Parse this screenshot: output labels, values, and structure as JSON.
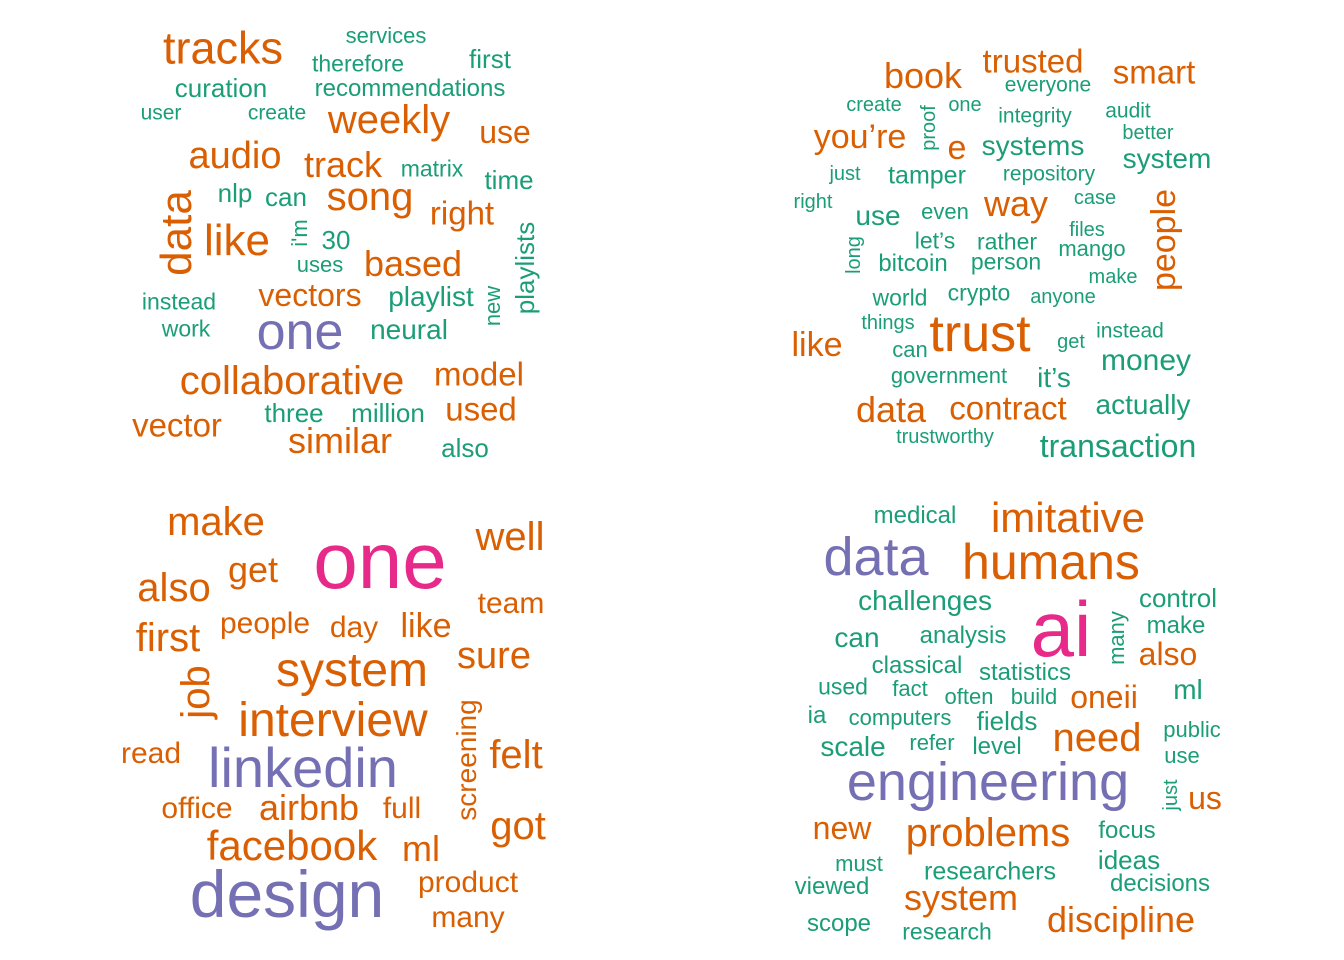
{
  "colors": {
    "orange": "#d95f02",
    "green": "#1b9e77",
    "purple": "#7570b3",
    "pink": "#e7298a"
  },
  "clouds": [
    {
      "words": [
        {
          "text": "tracks",
          "c": "orange",
          "w": 45
        },
        {
          "text": "services",
          "c": "green",
          "w": 22
        },
        {
          "text": "therefore",
          "c": "green",
          "w": 23
        },
        {
          "text": "first",
          "c": "green",
          "w": 26
        },
        {
          "text": "curation",
          "c": "green",
          "w": 26
        },
        {
          "text": "recommendations",
          "c": "green",
          "w": 24
        },
        {
          "text": "user",
          "c": "green",
          "w": 21
        },
        {
          "text": "create",
          "c": "green",
          "w": 21
        },
        {
          "text": "weekly",
          "c": "orange",
          "w": 40
        },
        {
          "text": "use",
          "c": "orange",
          "w": 32
        },
        {
          "text": "audio",
          "c": "orange",
          "w": 38
        },
        {
          "text": "track",
          "c": "orange",
          "w": 36
        },
        {
          "text": "matrix",
          "c": "green",
          "w": 23
        },
        {
          "text": "time",
          "c": "green",
          "w": 26
        },
        {
          "text": "data",
          "c": "orange",
          "w": 44,
          "v": true
        },
        {
          "text": "nlp",
          "c": "green",
          "w": 26
        },
        {
          "text": "can",
          "c": "green",
          "w": 26
        },
        {
          "text": "song",
          "c": "orange",
          "w": 40
        },
        {
          "text": "right",
          "c": "orange",
          "w": 33
        },
        {
          "text": "like",
          "c": "orange",
          "w": 44
        },
        {
          "text": "i'm",
          "c": "green",
          "w": 22,
          "v": true
        },
        {
          "text": "30",
          "c": "green",
          "w": 26
        },
        {
          "text": "uses",
          "c": "green",
          "w": 22
        },
        {
          "text": "based",
          "c": "orange",
          "w": 36
        },
        {
          "text": "playlists",
          "c": "green",
          "w": 26,
          "v": true
        },
        {
          "text": "new",
          "c": "green",
          "w": 22,
          "v": true
        },
        {
          "text": "instead",
          "c": "green",
          "w": 23
        },
        {
          "text": "vectors",
          "c": "orange",
          "w": 32
        },
        {
          "text": "playlist",
          "c": "green",
          "w": 28
        },
        {
          "text": "work",
          "c": "green",
          "w": 23
        },
        {
          "text": "one",
          "c": "purple",
          "w": 52
        },
        {
          "text": "neural",
          "c": "green",
          "w": 28
        },
        {
          "text": "collaborative",
          "c": "orange",
          "w": 40
        },
        {
          "text": "model",
          "c": "orange",
          "w": 33
        },
        {
          "text": "vector",
          "c": "orange",
          "w": 33
        },
        {
          "text": "three",
          "c": "green",
          "w": 26
        },
        {
          "text": "million",
          "c": "green",
          "w": 26
        },
        {
          "text": "used",
          "c": "orange",
          "w": 33
        },
        {
          "text": "similar",
          "c": "orange",
          "w": 36
        },
        {
          "text": "also",
          "c": "green",
          "w": 26
        }
      ]
    },
    {
      "words": [
        {
          "text": "book",
          "c": "orange",
          "w": 36
        },
        {
          "text": "trusted",
          "c": "orange",
          "w": 33
        },
        {
          "text": "smart",
          "c": "orange",
          "w": 33
        },
        {
          "text": "everyone",
          "c": "green",
          "w": 21
        },
        {
          "text": "create",
          "c": "green",
          "w": 20
        },
        {
          "text": "proof",
          "c": "green",
          "w": 20,
          "v": true
        },
        {
          "text": "one",
          "c": "green",
          "w": 20
        },
        {
          "text": "integrity",
          "c": "green",
          "w": 21
        },
        {
          "text": "audit",
          "c": "green",
          "w": 21
        },
        {
          "text": "you’re",
          "c": "orange",
          "w": 34
        },
        {
          "text": "better",
          "c": "green",
          "w": 20
        },
        {
          "text": "e",
          "c": "orange",
          "w": 34
        },
        {
          "text": "systems",
          "c": "green",
          "w": 28
        },
        {
          "text": "system",
          "c": "green",
          "w": 28
        },
        {
          "text": "just",
          "c": "green",
          "w": 20
        },
        {
          "text": "tamper",
          "c": "green",
          "w": 25
        },
        {
          "text": "repository",
          "c": "green",
          "w": 21
        },
        {
          "text": "case",
          "c": "green",
          "w": 20
        },
        {
          "text": "right",
          "c": "green",
          "w": 20
        },
        {
          "text": "way",
          "c": "orange",
          "w": 36
        },
        {
          "text": "people",
          "c": "orange",
          "w": 34,
          "v": true
        },
        {
          "text": "use",
          "c": "green",
          "w": 28
        },
        {
          "text": "even",
          "c": "green",
          "w": 22
        },
        {
          "text": "files",
          "c": "green",
          "w": 20
        },
        {
          "text": "long",
          "c": "green",
          "w": 20,
          "v": true
        },
        {
          "text": "let’s",
          "c": "green",
          "w": 23
        },
        {
          "text": "rather",
          "c": "green",
          "w": 23
        },
        {
          "text": "mango",
          "c": "green",
          "w": 22
        },
        {
          "text": "bitcoin",
          "c": "green",
          "w": 24
        },
        {
          "text": "person",
          "c": "green",
          "w": 23
        },
        {
          "text": "make",
          "c": "green",
          "w": 20
        },
        {
          "text": "world",
          "c": "green",
          "w": 23
        },
        {
          "text": "crypto",
          "c": "green",
          "w": 23
        },
        {
          "text": "anyone",
          "c": "green",
          "w": 20
        },
        {
          "text": "things",
          "c": "green",
          "w": 20
        },
        {
          "text": "trust",
          "c": "orange",
          "w": 52
        },
        {
          "text": "instead",
          "c": "green",
          "w": 21
        },
        {
          "text": "like",
          "c": "orange",
          "w": 34
        },
        {
          "text": "can",
          "c": "green",
          "w": 22
        },
        {
          "text": "get",
          "c": "green",
          "w": 20
        },
        {
          "text": "money",
          "c": "green",
          "w": 30
        },
        {
          "text": "government",
          "c": "green",
          "w": 22
        },
        {
          "text": "it’s",
          "c": "green",
          "w": 28
        },
        {
          "text": "data",
          "c": "orange",
          "w": 36
        },
        {
          "text": "contract",
          "c": "orange",
          "w": 33
        },
        {
          "text": "actually",
          "c": "green",
          "w": 28
        },
        {
          "text": "trustworthy",
          "c": "green",
          "w": 20
        },
        {
          "text": "transaction",
          "c": "green",
          "w": 32
        }
      ]
    },
    {
      "words": [
        {
          "text": "make",
          "c": "orange",
          "w": 40
        },
        {
          "text": "one",
          "c": "pink",
          "w": 80
        },
        {
          "text": "well",
          "c": "orange",
          "w": 40
        },
        {
          "text": "get",
          "c": "orange",
          "w": 36
        },
        {
          "text": "also",
          "c": "orange",
          "w": 40
        },
        {
          "text": "team",
          "c": "orange",
          "w": 30
        },
        {
          "text": "first",
          "c": "orange",
          "w": 40
        },
        {
          "text": "people",
          "c": "orange",
          "w": 30
        },
        {
          "text": "day",
          "c": "orange",
          "w": 30
        },
        {
          "text": "like",
          "c": "orange",
          "w": 34
        },
        {
          "text": "sure",
          "c": "orange",
          "w": 38
        },
        {
          "text": "system",
          "c": "orange",
          "w": 48
        },
        {
          "text": "job",
          "c": "orange",
          "w": 40,
          "v": true
        },
        {
          "text": "interview",
          "c": "orange",
          "w": 48
        },
        {
          "text": "screening",
          "c": "orange",
          "w": 28,
          "v": true
        },
        {
          "text": "felt",
          "c": "orange",
          "w": 40
        },
        {
          "text": "read",
          "c": "orange",
          "w": 30
        },
        {
          "text": "linkedin",
          "c": "purple",
          "w": 56
        },
        {
          "text": "office",
          "c": "orange",
          "w": 30
        },
        {
          "text": "airbnb",
          "c": "orange",
          "w": 36
        },
        {
          "text": "full",
          "c": "orange",
          "w": 30
        },
        {
          "text": "got",
          "c": "orange",
          "w": 40
        },
        {
          "text": "facebook",
          "c": "orange",
          "w": 42
        },
        {
          "text": "ml",
          "c": "orange",
          "w": 36
        },
        {
          "text": "product",
          "c": "orange",
          "w": 30
        },
        {
          "text": "design",
          "c": "purple",
          "w": 66
        },
        {
          "text": "many",
          "c": "orange",
          "w": 30
        }
      ]
    },
    {
      "words": [
        {
          "text": "medical",
          "c": "green",
          "w": 24
        },
        {
          "text": "imitative",
          "c": "orange",
          "w": 42
        },
        {
          "text": "data",
          "c": "purple",
          "w": 54
        },
        {
          "text": "humans",
          "c": "orange",
          "w": 50
        },
        {
          "text": "challenges",
          "c": "green",
          "w": 28
        },
        {
          "text": "ai",
          "c": "pink",
          "w": 78
        },
        {
          "text": "many",
          "c": "green",
          "w": 22,
          "v": true
        },
        {
          "text": "control",
          "c": "green",
          "w": 26
        },
        {
          "text": "make",
          "c": "green",
          "w": 24
        },
        {
          "text": "can",
          "c": "green",
          "w": 28
        },
        {
          "text": "analysis",
          "c": "green",
          "w": 24
        },
        {
          "text": "also",
          "c": "orange",
          "w": 32
        },
        {
          "text": "classical",
          "c": "green",
          "w": 24
        },
        {
          "text": "statistics",
          "c": "green",
          "w": 24
        },
        {
          "text": "used",
          "c": "green",
          "w": 23
        },
        {
          "text": "fact",
          "c": "green",
          "w": 22
        },
        {
          "text": "often",
          "c": "green",
          "w": 22
        },
        {
          "text": "build",
          "c": "green",
          "w": 22
        },
        {
          "text": "oneii",
          "c": "orange",
          "w": 32
        },
        {
          "text": "ml",
          "c": "green",
          "w": 28
        },
        {
          "text": "ia",
          "c": "green",
          "w": 24
        },
        {
          "text": "computers",
          "c": "green",
          "w": 22
        },
        {
          "text": "fields",
          "c": "green",
          "w": 26
        },
        {
          "text": "public",
          "c": "green",
          "w": 22
        },
        {
          "text": "scale",
          "c": "green",
          "w": 28
        },
        {
          "text": "refer",
          "c": "green",
          "w": 22
        },
        {
          "text": "level",
          "c": "green",
          "w": 24
        },
        {
          "text": "need",
          "c": "orange",
          "w": 40
        },
        {
          "text": "use",
          "c": "green",
          "w": 22
        },
        {
          "text": "engineering",
          "c": "purple",
          "w": 54
        },
        {
          "text": "just",
          "c": "green",
          "w": 20,
          "v": true
        },
        {
          "text": "us",
          "c": "orange",
          "w": 32
        },
        {
          "text": "new",
          "c": "orange",
          "w": 32
        },
        {
          "text": "problems",
          "c": "orange",
          "w": 40
        },
        {
          "text": "focus",
          "c": "green",
          "w": 24
        },
        {
          "text": "must",
          "c": "green",
          "w": 22
        },
        {
          "text": "ideas",
          "c": "green",
          "w": 26
        },
        {
          "text": "researchers",
          "c": "green",
          "w": 25
        },
        {
          "text": "viewed",
          "c": "green",
          "w": 24
        },
        {
          "text": "decisions",
          "c": "green",
          "w": 24
        },
        {
          "text": "system",
          "c": "orange",
          "w": 36
        },
        {
          "text": "scope",
          "c": "green",
          "w": 24
        },
        {
          "text": "research",
          "c": "green",
          "w": 23
        },
        {
          "text": "discipline",
          "c": "orange",
          "w": 36
        }
      ]
    }
  ]
}
